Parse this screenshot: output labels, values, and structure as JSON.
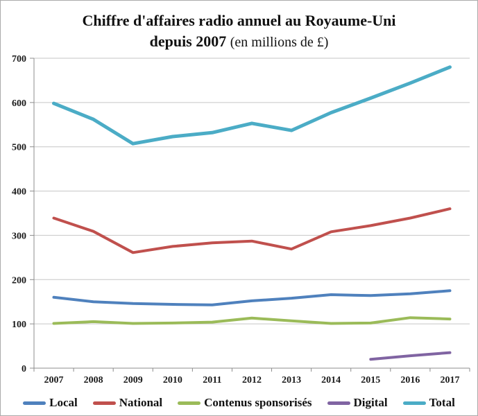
{
  "title": {
    "line1": "Chiffre d'affaires radio annuel au Royaume-Uni",
    "line2_bold": "depuis 2007",
    "line2_normal": "(en millions de £)"
  },
  "colors": {
    "local": "#4F81BD",
    "national": "#C0504D",
    "sponsored": "#9BBB59",
    "digital": "#8064A2",
    "total": "#4BACC6",
    "gridline": "#C6C6C6",
    "axis": "#8C8C8C",
    "tick_text": "#1a1a1a"
  },
  "chart_data": {
    "type": "line",
    "title": "Chiffre d'affaires radio annuel au Royaume-Uni depuis 2007 (en millions de £)",
    "categories": [
      "2007",
      "2008",
      "2009",
      "2010",
      "2011",
      "2012",
      "2013",
      "2014",
      "2015",
      "2016",
      "2017"
    ],
    "series": [
      {
        "name": "Local",
        "color": "#4F81BD",
        "stroke_width": 4,
        "values": [
          160,
          150,
          146,
          144,
          143,
          152,
          158,
          166,
          164,
          168,
          175
        ]
      },
      {
        "name": "National",
        "color": "#C0504D",
        "stroke_width": 4,
        "values": [
          339,
          309,
          261,
          275,
          283,
          287,
          269,
          308,
          322,
          339,
          360
        ]
      },
      {
        "name": "Contenus sponsorisés",
        "color": "#9BBB59",
        "stroke_width": 4,
        "values": [
          101,
          105,
          101,
          102,
          104,
          113,
          107,
          101,
          102,
          114,
          111
        ]
      },
      {
        "name": "Digital",
        "color": "#8064A2",
        "stroke_width": 4,
        "values": [
          null,
          null,
          null,
          null,
          null,
          null,
          null,
          null,
          20,
          28,
          35
        ]
      },
      {
        "name": "Total",
        "color": "#4BACC6",
        "stroke_width": 5,
        "values": [
          598,
          562,
          507,
          523,
          532,
          553,
          537,
          577,
          610,
          644,
          680
        ]
      }
    ],
    "xlabel": "",
    "ylabel": "",
    "ylim": [
      0,
      700
    ],
    "ytick_step": 100,
    "grid": true,
    "legend_position": "bottom"
  }
}
